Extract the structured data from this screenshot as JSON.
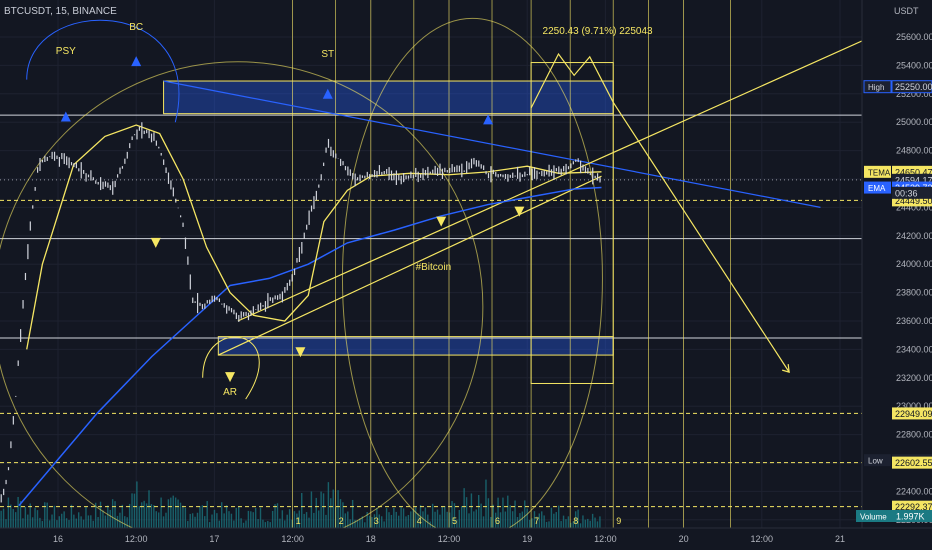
{
  "header": {
    "symbol_line": "BTCUSDT, 15, BINANCE"
  },
  "chart_data": {
    "type": "candlestick",
    "currency": "USDT",
    "y_ticks": [
      25600,
      25400,
      25200,
      25000,
      24800,
      24600,
      24400,
      24200,
      24000,
      23800,
      23600,
      23400,
      23200,
      23000,
      22800,
      22600,
      22400,
      22200
    ],
    "ylim": [
      22120,
      25880
    ],
    "x_labels": [
      {
        "t": 0.0,
        "label": "16"
      },
      {
        "t": 1.0,
        "label": "12:00"
      },
      {
        "t": 2.0,
        "label": "17"
      },
      {
        "t": 3.0,
        "label": "12:00"
      },
      {
        "t": 4.0,
        "label": "18"
      },
      {
        "t": 5.0,
        "label": "12:00"
      },
      {
        "t": 6.0,
        "label": "19"
      },
      {
        "t": 7.0,
        "label": "12:00"
      },
      {
        "t": 8.0,
        "label": "20"
      },
      {
        "t": 9.0,
        "label": "12:00"
      },
      {
        "t": 10.0,
        "label": "21"
      }
    ],
    "price_path": [
      [
        -0.85,
        22150
      ],
      [
        -0.75,
        22300
      ],
      [
        -0.65,
        22480
      ],
      [
        -0.55,
        23000
      ],
      [
        -0.45,
        23700
      ],
      [
        -0.35,
        24300
      ],
      [
        -0.25,
        24700
      ],
      [
        -0.1,
        24760
      ],
      [
        0.1,
        24740
      ],
      [
        0.3,
        24660
      ],
      [
        0.5,
        24580
      ],
      [
        0.7,
        24540
      ],
      [
        0.85,
        24720
      ],
      [
        0.95,
        24890
      ],
      [
        1.05,
        24960
      ],
      [
        1.25,
        24880
      ],
      [
        1.45,
        24560
      ],
      [
        1.6,
        24280
      ],
      [
        1.72,
        23750
      ],
      [
        1.85,
        23700
      ],
      [
        2.0,
        23760
      ],
      [
        2.15,
        23700
      ],
      [
        2.3,
        23640
      ],
      [
        2.45,
        23660
      ],
      [
        2.6,
        23700
      ],
      [
        2.75,
        23760
      ],
      [
        2.9,
        23800
      ],
      [
        3.05,
        24000
      ],
      [
        3.2,
        24300
      ],
      [
        3.35,
        24570
      ],
      [
        3.45,
        24850
      ],
      [
        3.6,
        24730
      ],
      [
        3.8,
        24600
      ],
      [
        4.0,
        24620
      ],
      [
        4.2,
        24650
      ],
      [
        4.4,
        24600
      ],
      [
        4.6,
        24620
      ],
      [
        4.8,
        24650
      ],
      [
        5.0,
        24660
      ],
      [
        5.2,
        24660
      ],
      [
        5.35,
        24720
      ],
      [
        5.5,
        24640
      ],
      [
        5.7,
        24630
      ],
      [
        5.9,
        24620
      ],
      [
        6.1,
        24640
      ],
      [
        6.3,
        24640
      ],
      [
        6.5,
        24680
      ],
      [
        6.65,
        24730
      ],
      [
        6.8,
        24640
      ],
      [
        6.95,
        24594
      ]
    ],
    "volume_path": [
      [
        -0.85,
        0.25
      ],
      [
        -0.5,
        0.35
      ],
      [
        0.0,
        0.2
      ],
      [
        0.5,
        0.25
      ],
      [
        1.0,
        0.45
      ],
      [
        1.5,
        0.3
      ],
      [
        2.0,
        0.25
      ],
      [
        2.5,
        0.2
      ],
      [
        3.0,
        0.3
      ],
      [
        3.4,
        0.6
      ],
      [
        3.6,
        0.35
      ],
      [
        4.0,
        0.2
      ],
      [
        4.5,
        0.2
      ],
      [
        5.0,
        0.25
      ],
      [
        5.4,
        0.5
      ],
      [
        5.8,
        0.3
      ],
      [
        6.2,
        0.25
      ],
      [
        6.6,
        0.2
      ],
      [
        6.95,
        0.15
      ]
    ],
    "ema_path": [
      [
        -0.5,
        22300
      ],
      [
        0.5,
        22950
      ],
      [
        1.2,
        23350
      ],
      [
        1.7,
        23600
      ],
      [
        2.2,
        23850
      ],
      [
        2.7,
        23900
      ],
      [
        3.2,
        24000
      ],
      [
        3.7,
        24150
      ],
      [
        4.3,
        24240
      ],
      [
        4.9,
        24340
      ],
      [
        5.5,
        24420
      ],
      [
        6.1,
        24480
      ],
      [
        6.6,
        24530
      ],
      [
        6.95,
        24539.73
      ]
    ],
    "tema_path": [
      [
        -0.4,
        23400
      ],
      [
        -0.2,
        24000
      ],
      [
        0.2,
        24700
      ],
      [
        0.6,
        24900
      ],
      [
        1.0,
        24980
      ],
      [
        1.3,
        24920
      ],
      [
        1.6,
        24600
      ],
      [
        1.9,
        24120
      ],
      [
        2.2,
        23800
      ],
      [
        2.5,
        23640
      ],
      [
        2.9,
        23600
      ],
      [
        3.2,
        23780
      ],
      [
        3.4,
        24300
      ],
      [
        3.7,
        24520
      ],
      [
        4.0,
        24620
      ],
      [
        4.5,
        24640
      ],
      [
        5.0,
        24630
      ],
      [
        5.5,
        24650
      ],
      [
        6.0,
        24690
      ],
      [
        6.4,
        24640
      ],
      [
        6.95,
        24650.47
      ]
    ],
    "solid_hlines": [
      {
        "price": 25050,
        "color": "#d1d4dc"
      },
      {
        "price": 24180,
        "color": "#d1d4dc"
      },
      {
        "price": 23480,
        "color": "#d1d4dc"
      }
    ],
    "dashed_hlines": [
      {
        "price": 24449.5,
        "color": "#f5e663"
      },
      {
        "price": 22949.09,
        "color": "#f5e663"
      },
      {
        "price": 22602.55,
        "color": "#f5e663"
      },
      {
        "price": 22292.37,
        "color": "#f5e663"
      }
    ],
    "dotted_hlines": [
      {
        "price": 24594.17,
        "color": "#9598a1"
      }
    ],
    "vlines_t": [
      3.0,
      3.55,
      4.0,
      4.55,
      5.0,
      5.55,
      6.05,
      6.55,
      7.1,
      7.55,
      8.0,
      8.6
    ],
    "cycle_labels": [
      {
        "t": 3.0,
        "label": "1"
      },
      {
        "t": 3.55,
        "label": "2"
      },
      {
        "t": 4.0,
        "label": "3"
      },
      {
        "t": 4.55,
        "label": "4"
      },
      {
        "t": 5.0,
        "label": "5"
      },
      {
        "t": 5.55,
        "label": "6"
      },
      {
        "t": 6.05,
        "label": "7"
      },
      {
        "t": 6.55,
        "label": "8"
      },
      {
        "t": 7.1,
        "label": "9"
      }
    ],
    "zones": [
      {
        "t0": 1.35,
        "t1": 7.1,
        "top": 25290,
        "bottom": 25060,
        "color": "#2962ff"
      },
      {
        "t0": 2.05,
        "t1": 7.1,
        "top": 23490,
        "bottom": 23360,
        "color": "#2962ff"
      }
    ],
    "projection_box": {
      "t0": 6.05,
      "t1": 7.1,
      "top": 25420,
      "bottom": 23160
    },
    "trend_lines": [
      {
        "p1": [
          1.35,
          25290
        ],
        "p2": [
          9.75,
          24400
        ],
        "color": "#2962ff"
      },
      {
        "p1": [
          2.3,
          23600
        ],
        "p2": [
          11.0,
          25750
        ],
        "color": "#f5e663"
      },
      {
        "p1": [
          2.05,
          23360
        ],
        "p2": [
          6.95,
          24620
        ],
        "color": "#f5e663"
      }
    ],
    "projection_path": [
      [
        6.05,
        25100
      ],
      [
        6.4,
        25480
      ],
      [
        6.6,
        25330
      ],
      [
        6.8,
        25460
      ],
      [
        7.1,
        25140
      ],
      [
        9.35,
        23240
      ]
    ],
    "arrows_down_yellow": [
      {
        "t": 1.25,
        "price": 24150
      },
      {
        "t": 2.2,
        "price": 23205
      },
      {
        "t": 3.1,
        "price": 23380
      },
      {
        "t": 4.9,
        "price": 24300
      },
      {
        "t": 5.9,
        "price": 24370
      }
    ],
    "arrows_up_blue": [
      {
        "t": 0.1,
        "price": 25040
      },
      {
        "t": 1.0,
        "price": 25430
      },
      {
        "t": 3.45,
        "price": 25200
      },
      {
        "t": 5.5,
        "price": 25020
      }
    ],
    "annotations": [
      {
        "t": 0.1,
        "price": 25480,
        "label": "PSY",
        "name": "annotation-psy"
      },
      {
        "t": 1.0,
        "price": 25650,
        "label": "BC",
        "name": "annotation-bc"
      },
      {
        "t": 3.45,
        "price": 25460,
        "label": "ST",
        "name": "annotation-st"
      },
      {
        "t": 2.2,
        "price": 23080,
        "label": "AR",
        "name": "annotation-ar"
      },
      {
        "t": 4.8,
        "price": 23960,
        "label": "#Bitcoin",
        "name": "annotation-bitcoin"
      },
      {
        "t": 6.9,
        "price": 25620,
        "label": "2250.43 (9.71%) 225043",
        "name": "annotation-measure"
      }
    ],
    "price_labels": [
      {
        "price": 25250.0,
        "text": "25250.00",
        "tag": "High",
        "bg": "#1c2130",
        "fg": "#d1d4dc",
        "border": "#2962ff"
      },
      {
        "price": 24650.47,
        "text": "24650.47",
        "tag": "TEMA",
        "bg": "#f5e663",
        "fg": "#131722"
      },
      {
        "price": 24594.17,
        "text": "24594.17",
        "tag": "",
        "bg": "#1c2130",
        "fg": "#d1d4dc"
      },
      {
        "price": 24539.73,
        "text": "24539.73",
        "tag": "EMA",
        "bg": "#2962ff",
        "fg": "#ffffff"
      },
      {
        "price": 24449.5,
        "text": "24449.50",
        "tag": "",
        "bg": "#f5e663",
        "fg": "#131722"
      },
      {
        "price": 22949.09,
        "text": "22949.09",
        "tag": "",
        "bg": "#f5e663",
        "fg": "#131722"
      },
      {
        "price": 22620.0,
        "text": "22620.00",
        "tag": "Low",
        "bg": "#1c2130",
        "fg": "#d1d4dc"
      },
      {
        "price": 22602.55,
        "text": "22602.55",
        "tag": "",
        "bg": "#f5e663",
        "fg": "#131722"
      },
      {
        "price": 22292.37,
        "text": "22292.37",
        "tag": "",
        "bg": "#f5e663",
        "fg": "#131722"
      }
    ],
    "countdown": "00:36",
    "volume_label": {
      "tag": "Volume",
      "value": "1.997K"
    },
    "colors": {
      "background": "#131722",
      "grid": "#1e2230",
      "axis_text": "#b2b5be",
      "yellow": "#f5e663",
      "blue": "#2962ff",
      "volume": "#1b7a83",
      "candle": "#d1d4dc"
    }
  }
}
